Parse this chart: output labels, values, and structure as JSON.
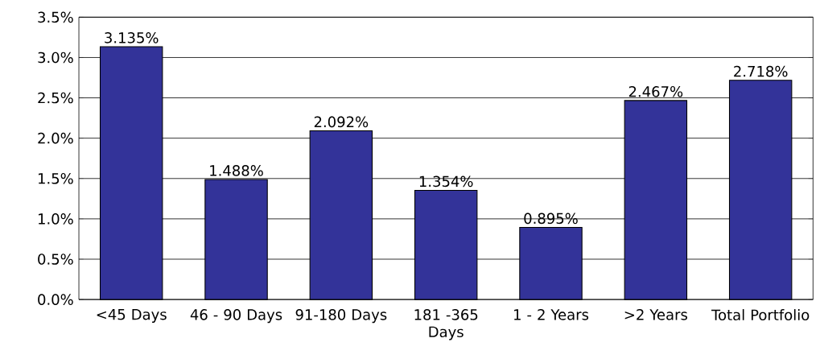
{
  "chart_data": {
    "type": "bar",
    "categories": [
      "<45 Days",
      "46 - 90 Days",
      "91-180 Days",
      "181 -365 Days",
      "1 - 2 Years",
      ">2 Years",
      "Total Portfolio"
    ],
    "values": [
      3.135,
      1.488,
      2.092,
      1.354,
      0.895,
      2.467,
      2.718
    ],
    "value_labels": [
      "3.135%",
      "1.488%",
      "2.092%",
      "1.354%",
      "0.895%",
      "2.467%",
      "2.718%"
    ],
    "color": "#333399",
    "ylim": [
      0,
      3.5
    ],
    "yticks": [
      {
        "value": 0,
        "label": "0.0%"
      },
      {
        "value": 0.5,
        "label": "0.5%"
      },
      {
        "value": 1,
        "label": "1.0%"
      },
      {
        "value": 1.5,
        "label": "1.5%"
      },
      {
        "value": 2,
        "label": "2.0%"
      },
      {
        "value": 2.5,
        "label": "2.5%"
      },
      {
        "value": 3,
        "label": "3.0%"
      },
      {
        "value": 3.5,
        "label": "3.5%"
      }
    ],
    "grid": "y"
  }
}
